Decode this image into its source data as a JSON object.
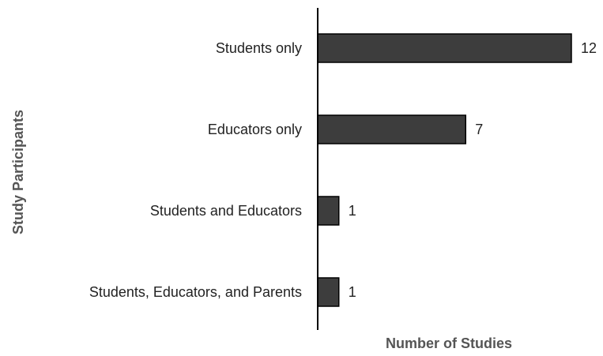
{
  "chart_data": {
    "type": "bar",
    "orientation": "horizontal",
    "title": "",
    "xlabel": "Number of Studies",
    "ylabel": "Study Participants",
    "categories": [
      "Students only",
      "Educators only",
      "Students and Educators",
      "Students, Educators, and Parents"
    ],
    "values": [
      12,
      7,
      1,
      1
    ],
    "data_labels": [
      "12",
      "7",
      "1",
      "1"
    ],
    "xlim": [
      0,
      12
    ],
    "grid": false,
    "legend": "none",
    "colors": {
      "bar_fill": "#3d3d3d",
      "bar_stroke": "#000000",
      "axis": "#000000",
      "text": "#222222"
    }
  }
}
